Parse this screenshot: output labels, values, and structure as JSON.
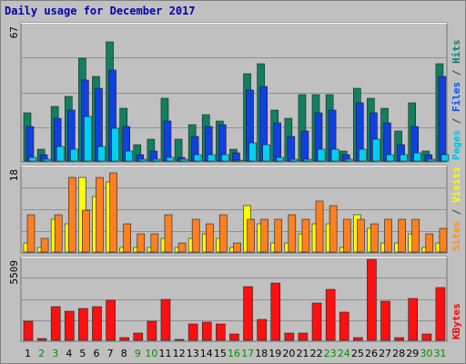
{
  "chart_data": {
    "type": "bar",
    "title": "Daily usage for December 2017",
    "categories": [
      "1",
      "2",
      "3",
      "4",
      "5",
      "6",
      "7",
      "8",
      "9",
      "10",
      "11",
      "12",
      "13",
      "14",
      "15",
      "16",
      "17",
      "18",
      "19",
      "20",
      "21",
      "22",
      "23",
      "24",
      "25",
      "26",
      "27",
      "28",
      "29",
      "30",
      "31"
    ],
    "weekend_days": [
      2,
      3,
      9,
      10,
      16,
      17,
      23,
      24,
      30,
      31
    ],
    "panels": [
      {
        "name": "pages-files-hits",
        "ymax": 67,
        "ylabel_parts": [
          "Pages",
          " / ",
          "Files",
          " / ",
          "Hits"
        ],
        "ylabel_colors": [
          "#00c0e0",
          "#404040",
          "#0050ff",
          "#404040",
          "#108060"
        ],
        "series": [
          {
            "name": "Hits",
            "color": "#108060",
            "values": [
              24,
              6,
              27,
              32,
              51,
              42,
              59,
              26,
              8,
              11,
              31,
              11,
              18,
              23,
              20,
              6,
              43,
              48,
              25,
              21,
              33,
              33,
              33,
              5,
              36,
              31,
              26,
              15,
              29,
              5,
              48
            ]
          },
          {
            "name": "Files",
            "color": "#1040e0",
            "values": [
              17,
              3,
              21,
              25,
              40,
              36,
              45,
              17,
              3,
              5,
              20,
              2,
              12,
              17,
              18,
              4,
              35,
              37,
              19,
              12,
              15,
              24,
              25,
              3,
              29,
              24,
              19,
              8,
              17,
              3,
              42
            ]
          },
          {
            "name": "Pages",
            "color": "#00d0f0",
            "values": [
              2,
              1,
              7,
              6,
              22,
              7,
              16,
              5,
              1,
              1,
              2,
              1,
              3,
              3,
              3,
              0,
              9,
              8,
              2,
              1,
              1,
              6,
              6,
              1,
              6,
              11,
              3,
              3,
              4,
              1,
              3
            ]
          }
        ]
      },
      {
        "name": "visits-sites",
        "ymax": 18,
        "ylabel_parts": [
          "Sites",
          " / ",
          "Visits"
        ],
        "ylabel_colors": [
          "#ff9010",
          "#404040",
          "#ffff00"
        ],
        "series": [
          {
            "name": "Visits",
            "color": "#ffff00",
            "values": [
              2,
              1,
              7,
              6,
              16,
              12,
              15,
              1,
              1,
              1,
              3,
              1,
              3,
              4,
              3,
              1,
              10,
              6,
              2,
              2,
              4,
              6,
              6,
              1,
              8,
              5,
              2,
              2,
              4,
              1,
              2
            ]
          },
          {
            "name": "Sites",
            "color": "#ff8020",
            "values": [
              8,
              3,
              8,
              16,
              9,
              16,
              17,
              6,
              4,
              4,
              8,
              2,
              7,
              6,
              8,
              2,
              7,
              7,
              7,
              8,
              7,
              11,
              10,
              7,
              7,
              6,
              7,
              7,
              7,
              4,
              5
            ]
          }
        ]
      },
      {
        "name": "kbytes",
        "ymax": 5509,
        "ylabel_parts": [
          "KBytes"
        ],
        "ylabel_colors": [
          "#ff0000"
        ],
        "series": [
          {
            "name": "KBytes",
            "color": "#ff1010",
            "values": [
              1320,
              120,
              2320,
              1950,
              2160,
              2310,
              2730,
              160,
              480,
              1270,
              2760,
              60,
              1120,
              1210,
              1130,
              440,
              3630,
              1420,
              3930,
              520,
              500,
              2510,
              3470,
              1900,
              200,
              5509,
              2660,
              170,
              2870,
              450,
              3580
            ]
          }
        ]
      }
    ],
    "xtick_colors": {
      "weekday": "#000000",
      "weekend": "#009000"
    },
    "grid": true
  }
}
